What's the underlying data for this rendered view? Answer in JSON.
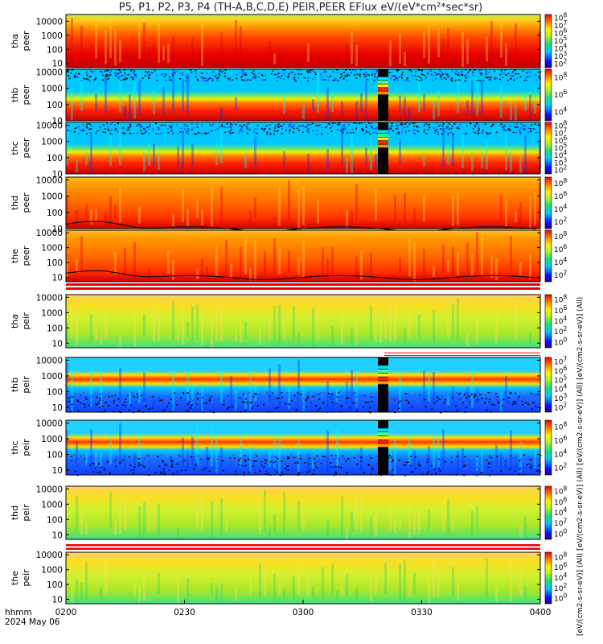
{
  "title": "P5, P1, P2, P3, P4 (TH-A,B,C,D,E) PEIR,PEER EFlux eV/(eV*cm²*sec*sr)",
  "footer": {
    "hhmm": "hhmm",
    "date": "2024 May 06"
  },
  "colorbar_side_label": "[eV/(cm2-s-sr-eV)] (All) [eV/(cm2-s-sr-eV)] (All) [eV/(cm2-s-sr-eV)] (All) [eV/(cm2-s-sr-eV)] (All)",
  "chart_data": {
    "type": "heatmap",
    "x_tick_labels": [
      "0200",
      "0230",
      "0300",
      "0330",
      "0400"
    ],
    "x_range": [
      "0200",
      "0400"
    ],
    "y_scale": "log",
    "y_tick_labels": [
      "10",
      "100",
      "1000",
      "10000"
    ],
    "panels": [
      {
        "probe": "tha",
        "species": "peer",
        "ylim": [
          5,
          30000
        ],
        "cbar_ticks": [
          "10^2",
          "10^3",
          "10^4",
          "10^5",
          "10^6",
          "10^7",
          "10^8"
        ],
        "style": "hot",
        "band_lo": 0.82,
        "band_hi": 0.98,
        "dropout": false
      },
      {
        "probe": "thb",
        "species": "peer",
        "ylim": [
          10,
          15000
        ],
        "cbar_ticks": [
          "10^4",
          "10^6",
          "10^8"
        ],
        "style": "stripe",
        "band_lo": 0.25,
        "band_hi": 0.55,
        "dropout": true
      },
      {
        "probe": "thc",
        "species": "peer",
        "ylim": [
          10,
          15000
        ],
        "cbar_ticks": [
          "10^2",
          "10^3",
          "10^4",
          "10^5",
          "10^6",
          "10^7",
          "10^8"
        ],
        "style": "stripe",
        "band_lo": 0.25,
        "band_hi": 0.55,
        "dropout": true
      },
      {
        "probe": "thd",
        "species": "peer",
        "ylim": [
          10,
          15000
        ],
        "cbar_ticks": [
          "10^2",
          "10^4",
          "10^6",
          "10^8"
        ],
        "style": "warm",
        "band_lo": 0.55,
        "band_hi": 0.95,
        "dropout": false
      },
      {
        "probe": "the",
        "species": "peer",
        "ylim": [
          5,
          15000
        ],
        "cbar_ticks": [
          "10^2",
          "10^4",
          "10^6",
          "10^8"
        ],
        "style": "warm",
        "band_lo": 0.4,
        "band_hi": 0.8,
        "dropout": false
      },
      {
        "probe": "tha",
        "species": "peir",
        "ylim": [
          5,
          15000
        ],
        "cbar_ticks": [
          "10^0",
          "10^2",
          "10^4",
          "10^6",
          "10^8"
        ],
        "style": "ion",
        "band_lo": 0.3,
        "band_hi": 0.7,
        "dropout": false
      },
      {
        "probe": "thb",
        "species": "peir",
        "ylim": [
          5,
          15000
        ],
        "cbar_ticks": [
          "10^2",
          "10^3",
          "10^4",
          "10^5",
          "10^6",
          "10^7"
        ],
        "style": "ionstripe",
        "band_lo": 0.55,
        "band_hi": 0.8,
        "dropout": true
      },
      {
        "probe": "thc",
        "species": "peir",
        "ylim": [
          5,
          15000
        ],
        "cbar_ticks": [
          "10^2",
          "10^4",
          "10^6",
          "10^8"
        ],
        "style": "ionstripe",
        "band_lo": 0.45,
        "band_hi": 0.8,
        "dropout": true
      },
      {
        "probe": "thd",
        "species": "peir",
        "ylim": [
          5,
          15000
        ],
        "cbar_ticks": [
          "10^0",
          "10^2",
          "10^4",
          "10^6",
          "10^8"
        ],
        "style": "ion",
        "band_lo": 0.3,
        "band_hi": 0.7,
        "dropout": false
      },
      {
        "probe": "the",
        "species": "peir",
        "ylim": [
          5,
          15000
        ],
        "cbar_ticks": [
          "10^0",
          "10^2",
          "10^4",
          "10^6",
          "10^8"
        ],
        "style": "ion",
        "band_lo": 0.35,
        "band_hi": 0.75,
        "dropout": false
      }
    ]
  }
}
